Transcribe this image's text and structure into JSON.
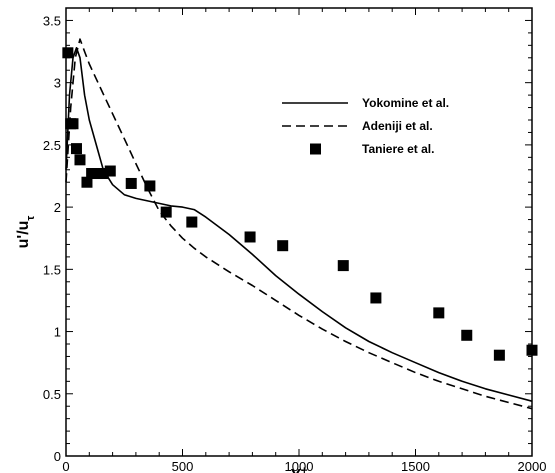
{
  "chart_data": {
    "type": "line",
    "xlabel": "Y",
    "xlabel_sup": "+",
    "ylabel": "u'/u",
    "ylabel_sub": "τ",
    "xlim": [
      0,
      2000
    ],
    "ylim": [
      0,
      3.6
    ],
    "xticks": [
      0,
      500,
      1000,
      1500,
      2000
    ],
    "yticks": [
      0,
      0.5,
      1,
      1.5,
      2,
      2.5,
      3,
      3.5
    ],
    "xtick_labels": [
      "0",
      "500",
      "1000",
      "1500",
      "2000"
    ],
    "ytick_labels": [
      "0",
      "0.5",
      "1",
      "1.5",
      "2",
      "2.5",
      "3",
      "3.5"
    ],
    "grid": false,
    "legend_position": "top-right",
    "series": [
      {
        "name": "Yokomine et al.",
        "style": "solid",
        "x": [
          0,
          15,
          30,
          45,
          60,
          80,
          100,
          130,
          160,
          200,
          250,
          300,
          350,
          400,
          450,
          500,
          550,
          600,
          700,
          800,
          900,
          1000,
          1100,
          1200,
          1300,
          1400,
          1500,
          1600,
          1700,
          1800,
          1900,
          2000
        ],
        "y": [
          2.3,
          2.9,
          3.2,
          3.28,
          3.2,
          2.9,
          2.7,
          2.5,
          2.3,
          2.18,
          2.1,
          2.07,
          2.05,
          2.03,
          2.01,
          2.0,
          1.98,
          1.92,
          1.78,
          1.62,
          1.45,
          1.3,
          1.16,
          1.03,
          0.92,
          0.83,
          0.75,
          0.67,
          0.6,
          0.54,
          0.49,
          0.44
        ]
      },
      {
        "name": "Adeniji et al.",
        "style": "dashed",
        "x": [
          0,
          20,
          40,
          60,
          80,
          100,
          150,
          200,
          250,
          300,
          350,
          400,
          450,
          500,
          550,
          600,
          700,
          800,
          900,
          1000,
          1100,
          1200,
          1300,
          1400,
          1500,
          1600,
          1700,
          1800,
          1900,
          2000
        ],
        "y": [
          2.2,
          2.8,
          3.2,
          3.35,
          3.25,
          3.15,
          2.95,
          2.75,
          2.55,
          2.35,
          2.15,
          1.97,
          1.85,
          1.75,
          1.67,
          1.6,
          1.48,
          1.37,
          1.25,
          1.13,
          1.02,
          0.92,
          0.83,
          0.75,
          0.67,
          0.6,
          0.54,
          0.48,
          0.43,
          0.38
        ]
      },
      {
        "name": "Taniere et al.",
        "style": "markers",
        "x": [
          8,
          20,
          30,
          45,
          60,
          90,
          110,
          135,
          160,
          190,
          280,
          360,
          430,
          540,
          790,
          930,
          1190,
          1330,
          1600,
          1720,
          1860,
          2000
        ],
        "y": [
          3.24,
          2.67,
          2.67,
          2.47,
          2.38,
          2.2,
          2.27,
          2.27,
          2.27,
          2.29,
          2.19,
          2.17,
          1.96,
          1.88,
          1.76,
          1.69,
          1.53,
          1.27,
          1.15,
          0.97,
          0.81,
          0.85
        ]
      }
    ]
  }
}
